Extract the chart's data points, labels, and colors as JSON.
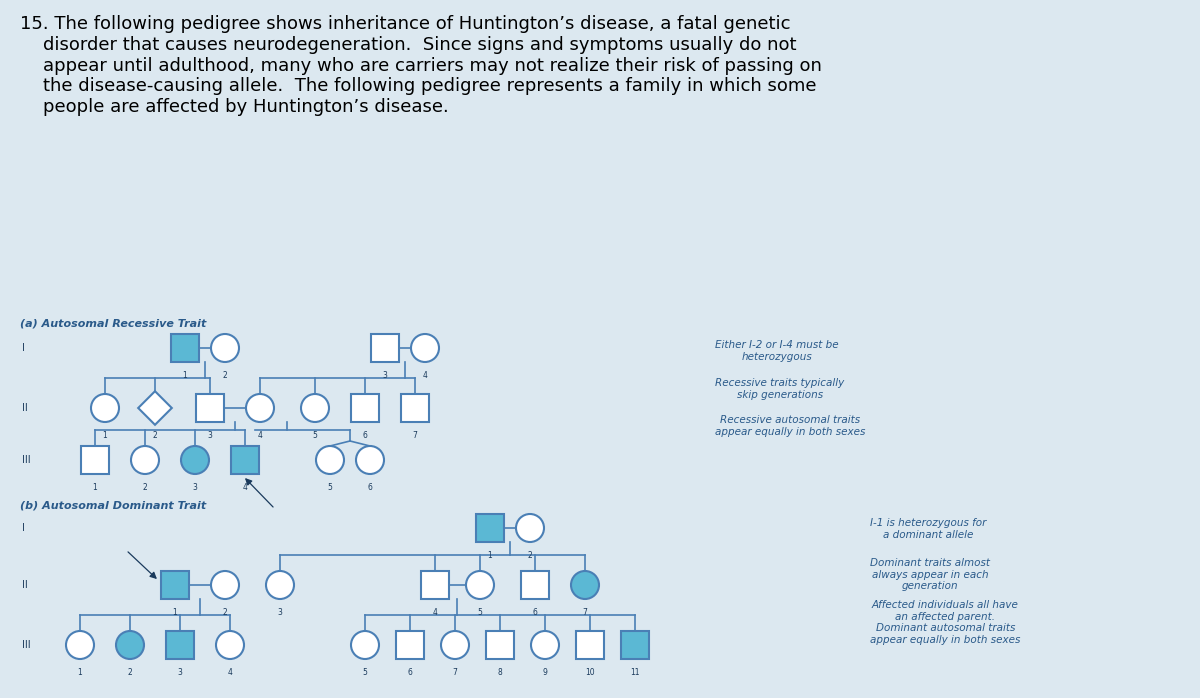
{
  "bg_color": "#dce8f0",
  "title_text": "15. The following pedigree shows inheritance of Huntington’s disease, a fatal genetic\n    disorder that causes neurodegeneration.  Since signs and symptoms usually do not\n    appear until adulthood, many who are carriers may not realize their risk of passing on\n    the disease-causing allele.  The following pedigree represents a family in which some\n    people are affected by Huntington’s disease.",
  "section_a_label": "(a) Autosomal Recessive Trait",
  "section_b_label": "(b) Autosomal Dominant Trait",
  "note_a1": "Either I-2 or I-4 must be\nheterozygous",
  "note_a2": "Recessive traits typically\nskip generations",
  "note_a3": "Recessive autosomal traits\nappear equally in both sexes",
  "note_b1": "I-1 is heterozygous for\na dominant allele",
  "note_b2": "Dominant traits almost\nalways appear in each\ngeneration",
  "note_b3": "Affected individuals all have\nan affected parent.\nDominant autosomal traits\nappear equally in both sexes",
  "affected_color": "#5bb8d4",
  "unaffected_fill": "#ffffff",
  "line_color": "#4a7fb5",
  "text_color": "#1a3a5c",
  "label_color": "#2a5a8a"
}
